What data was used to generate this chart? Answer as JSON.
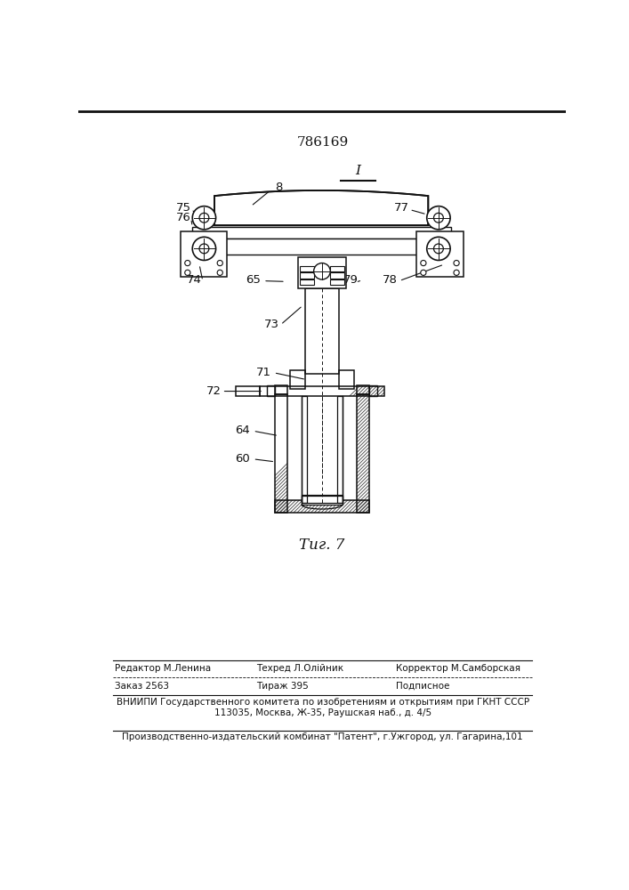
{
  "patent_number": "786169",
  "figure_label": "Τиг. 7",
  "editor_line1": "Редактор М.Ленина",
  "editor_line2": "Техред Л.Олійник",
  "editor_line3": "Корректор М.Самборская",
  "order_text": "Заказ 2563",
  "tirazh_text": "Тираж 395",
  "podp_text": "Подписное",
  "vnipi_line": "ВНИИПИ Государственного комитета по изобретениям и открытиям при ГКНТ СССР",
  "address_line": "113035, Москва, Ж-35, Раушская наб., д. 4/5",
  "publisher_line": "Производственно-издательский комбинат \"Патент\", г.Ужгород, ул. Гагарина,101"
}
